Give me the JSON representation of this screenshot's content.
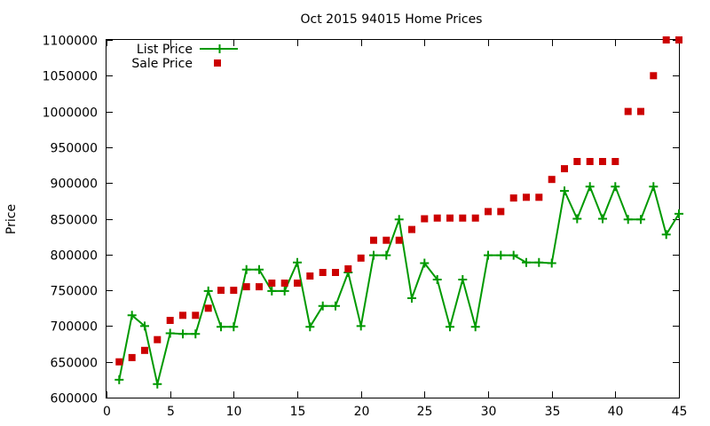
{
  "chart_data": {
    "type": "line",
    "title": "Oct 2015 94015 Home Prices",
    "xlabel": "",
    "ylabel": "Price",
    "xlim": [
      0,
      45
    ],
    "ylim": [
      600000,
      1100000
    ],
    "x_ticks": [
      "0",
      "5",
      "10",
      "15",
      "20",
      "25",
      "30",
      "35",
      "40",
      "45"
    ],
    "y_ticks": [
      "600000",
      "650000",
      "700000",
      "750000",
      "800000",
      "850000",
      "900000",
      "950000",
      "1000000",
      "1050000",
      "1100000"
    ],
    "grid": false,
    "legend_position": "top-left",
    "series": [
      {
        "name": "List Price",
        "style": "lines+points",
        "color": "#009900",
        "x": [
          1,
          2,
          3,
          4,
          5,
          6,
          7,
          8,
          9,
          10,
          11,
          12,
          13,
          14,
          15,
          16,
          17,
          18,
          19,
          20,
          21,
          22,
          23,
          24,
          25,
          26,
          27,
          28,
          29,
          30,
          31,
          32,
          33,
          34,
          35,
          36,
          37,
          38,
          39,
          40,
          41,
          42,
          43,
          44,
          45
        ],
        "values": [
          625000,
          715000,
          700000,
          619000,
          690000,
          689000,
          689000,
          749000,
          699000,
          699000,
          779000,
          779000,
          749000,
          749000,
          789000,
          699000,
          728000,
          728000,
          775000,
          700000,
          799000,
          799000,
          849000,
          739000,
          788000,
          765000,
          699000,
          765000,
          699000,
          799000,
          799000,
          799000,
          789000,
          789000,
          788000,
          889000,
          850000,
          895000,
          850000,
          895000,
          849000,
          849000,
          895000,
          828000,
          857000
        ]
      },
      {
        "name": "Sale Price",
        "style": "points",
        "color": "#cc0000",
        "x": [
          1,
          2,
          3,
          4,
          5,
          6,
          7,
          8,
          9,
          10,
          11,
          12,
          13,
          14,
          15,
          16,
          17,
          18,
          19,
          20,
          21,
          22,
          23,
          24,
          25,
          26,
          27,
          28,
          29,
          30,
          31,
          32,
          33,
          34,
          35,
          36,
          37,
          38,
          39,
          40,
          41,
          42,
          43,
          44,
          45
        ],
        "values": [
          650000,
          656000,
          666000,
          681000,
          708000,
          715000,
          715000,
          725000,
          750000,
          750000,
          755000,
          755000,
          760000,
          760000,
          760000,
          770000,
          775000,
          775000,
          780000,
          795000,
          820000,
          820000,
          820000,
          835000,
          850000,
          851000,
          851000,
          851000,
          851000,
          860000,
          860000,
          879000,
          880000,
          880000,
          905000,
          920000,
          930000,
          930000,
          930000,
          930000,
          1000000,
          1000000,
          1050000,
          1100000,
          1100000
        ]
      }
    ]
  }
}
